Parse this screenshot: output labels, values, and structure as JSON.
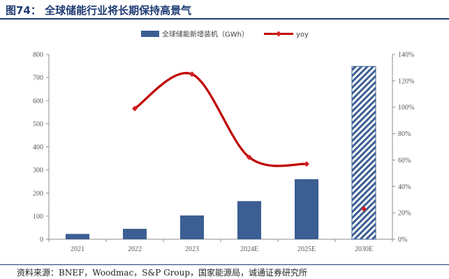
{
  "figure": {
    "title": "图74：  全球储能行业将长期保持高景气",
    "source": "资料来源：BNEF，Woodmac，S&P Group，国家能源局，诚通证券研究所"
  },
  "colors": {
    "bar": "#3b5e93",
    "bar_hatch_fg": "#3b5e93",
    "line": "#c00000",
    "marker": "#d41f26",
    "title": "#1f3b73"
  },
  "chart_data": {
    "type": "bar",
    "categories": [
      "2021",
      "2022",
      "2023",
      "2024E",
      "2025E",
      "2030E"
    ],
    "series": [
      {
        "name": "全球储能新增装机（GWh）",
        "type": "bar",
        "axis": "left",
        "values": [
          23,
          45,
          103,
          165,
          260,
          748
        ],
        "hatched": [
          false,
          false,
          false,
          false,
          false,
          true
        ]
      },
      {
        "name": "yoy",
        "type": "line",
        "axis": "right",
        "values": [
          null,
          99,
          125,
          62,
          57,
          23
        ],
        "line_connects": [
          1,
          2,
          3,
          4
        ],
        "marker_only": [
          5
        ]
      }
    ],
    "y_left": {
      "min": 0,
      "max": 800,
      "ticks": [
        "0",
        "100",
        "200",
        "300",
        "400",
        "500",
        "600",
        "700",
        "800"
      ]
    },
    "y_right": {
      "min": 0,
      "max": 140,
      "ticks": [
        "0%",
        "20%",
        "40%",
        "60%",
        "80%",
        "100%",
        "120%",
        "140%"
      ]
    },
    "legend": {
      "position": "top-center"
    },
    "grid": false
  }
}
